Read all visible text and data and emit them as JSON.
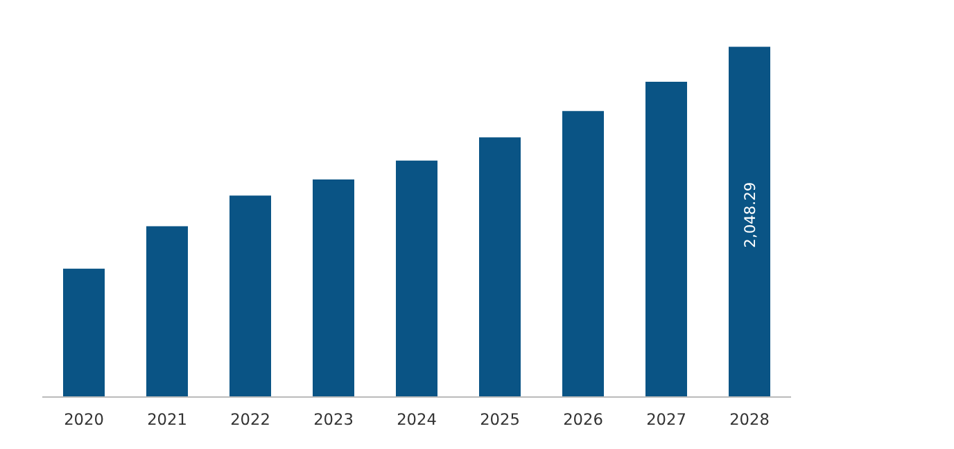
{
  "chart_data": {
    "type": "bar",
    "categories": [
      "2020",
      "2021",
      "2022",
      "2023",
      "2024",
      "2025",
      "2026",
      "2027",
      "2028"
    ],
    "values": [
      751,
      999,
      1178,
      1272,
      1383,
      1519,
      1673,
      1844,
      2048.29
    ],
    "color": "#0a5485",
    "value_labels": [
      null,
      null,
      null,
      null,
      null,
      null,
      null,
      null,
      "2,048.29"
    ],
    "grid": false
  }
}
